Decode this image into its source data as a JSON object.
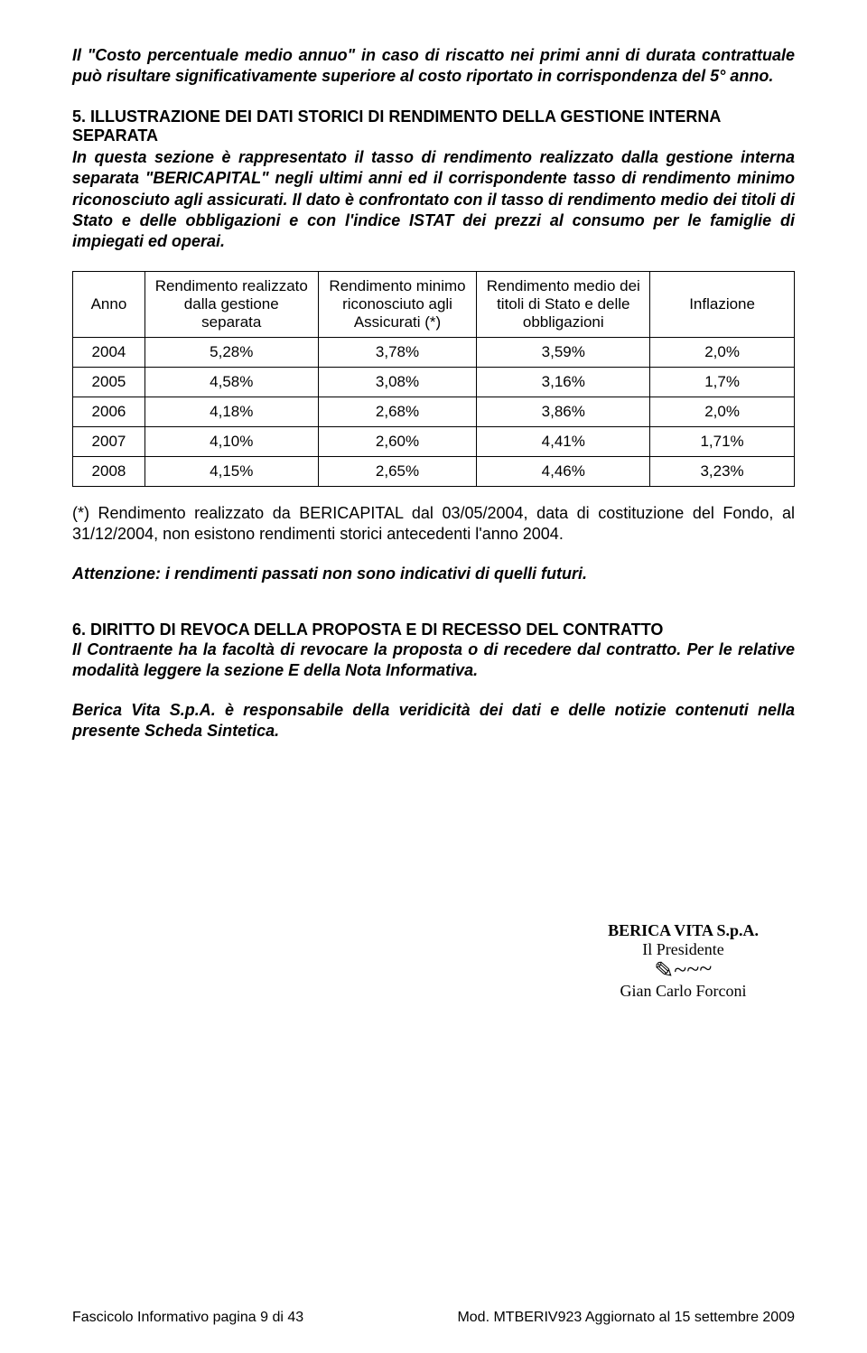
{
  "intro_para": "Il \"Costo percentuale medio annuo\" in caso di riscatto nei primi anni di durata contrattuale può risultare significativamente superiore al costo riportato in corrispondenza del 5° anno.",
  "section5": {
    "title": "5. ILLUSTRAZIONE DEI DATI STORICI DI RENDIMENTO DELLA GESTIONE INTERNA SEPARATA",
    "body": "In questa sezione è rappresentato il tasso di rendimento realizzato dalla gestione interna separata \"BERICAPITAL\" negli ultimi anni ed il corrispondente tasso di rendimento minimo riconosciuto agli assicurati. Il dato è confrontato con il tasso di rendimento medio dei titoli di Stato e delle obbligazioni e con l'indice ISTAT dei prezzi al consumo per le famiglie di impiegati ed operai."
  },
  "table": {
    "headers": {
      "anno": "Anno",
      "col1": "Rendimento realizzato dalla gestione separata",
      "col2": "Rendimento minimo riconosciuto agli Assicurati (*)",
      "col3": "Rendimento medio dei titoli di Stato e delle obbligazioni",
      "col4": "Inflazione"
    },
    "rows": [
      {
        "anno": "2004",
        "c1": "5,28%",
        "c2": "3,78%",
        "c3": "3,59%",
        "c4": "2,0%"
      },
      {
        "anno": "2005",
        "c1": "4,58%",
        "c2": "3,08%",
        "c3": "3,16%",
        "c4": "1,7%"
      },
      {
        "anno": "2006",
        "c1": "4,18%",
        "c2": "2,68%",
        "c3": "3,86%",
        "c4": "2,0%"
      },
      {
        "anno": "2007",
        "c1": "4,10%",
        "c2": "2,60%",
        "c3": "4,41%",
        "c4": "1,71%"
      },
      {
        "anno": "2008",
        "c1": "4,15%",
        "c2": "2,65%",
        "c3": "4,46%",
        "c4": "3,23%"
      }
    ]
  },
  "footnote": "(*) Rendimento realizzato da BERICAPITAL dal 03/05/2004, data di costituzione del Fondo, al 31/12/2004, non esistono rendimenti storici antecedenti l'anno 2004.",
  "attention": "Attenzione: i rendimenti passati non sono indicativi di quelli futuri.",
  "section6": {
    "title": "6. DIRITTO DI REVOCA DELLA PROPOSTA E DI RECESSO DEL CONTRATTO",
    "body": "Il Contraente ha la facoltà di revocare la proposta o di recedere dal contratto. Per le relative modalità leggere la sezione E della Nota Informativa."
  },
  "responsibility": "Berica Vita S.p.A. è responsabile della veridicità dei dati e delle notizie contenuti nella presente Scheda Sintetica.",
  "signature": {
    "company": "BERICA VITA S.p.A.",
    "role": "Il Presidente",
    "name": "Gian Carlo Forconi"
  },
  "footer": {
    "left": "Fascicolo Informativo pagina 9 di 43",
    "right": "Mod. MTBERIV923 Aggiornato al 15 settembre 2009"
  }
}
